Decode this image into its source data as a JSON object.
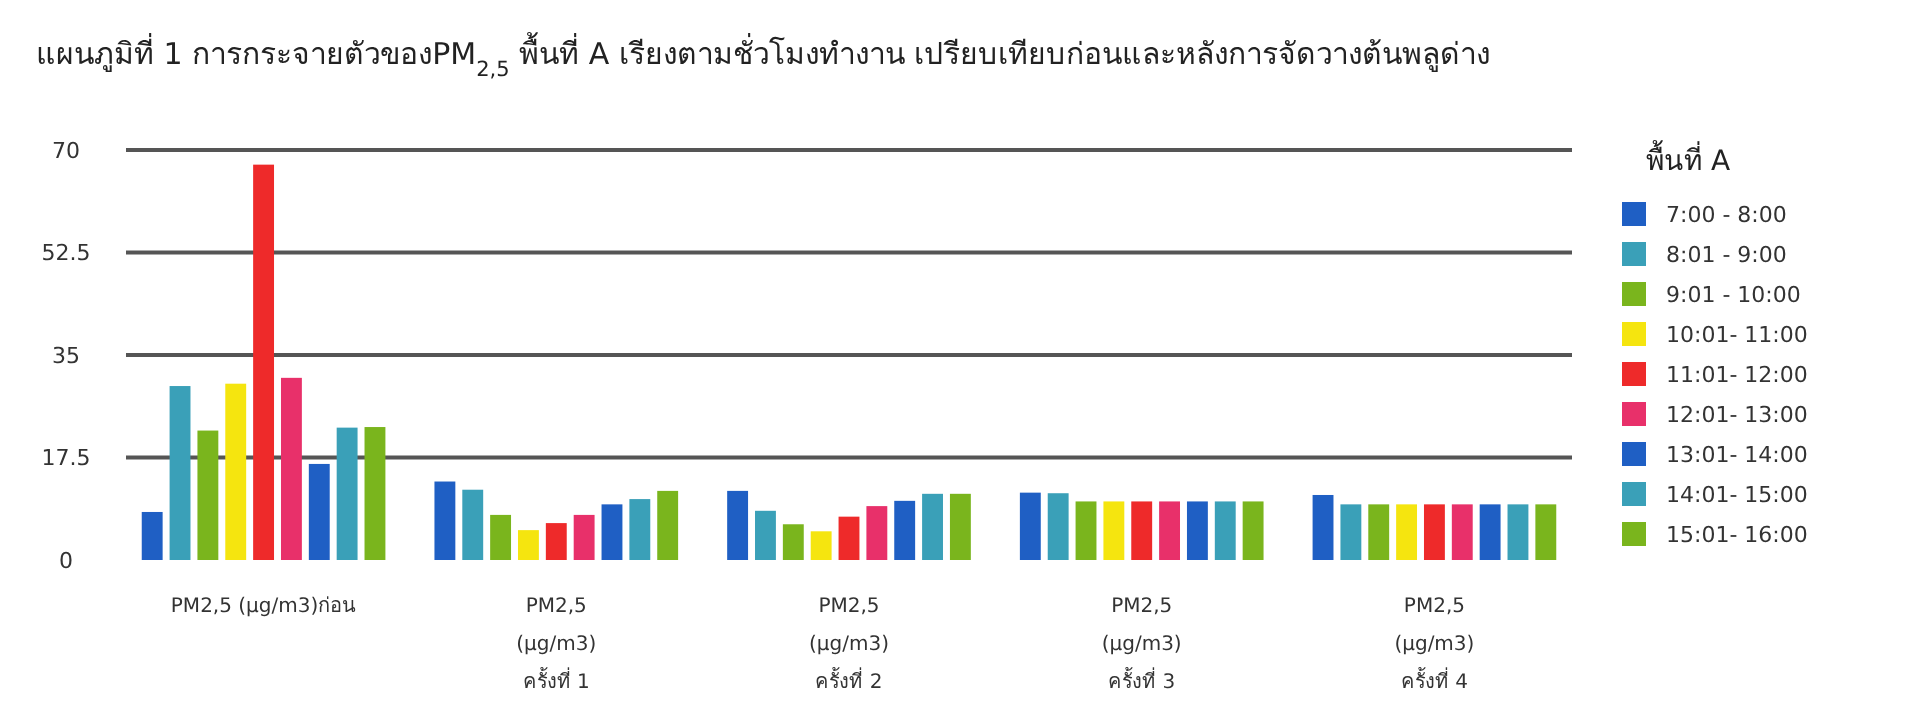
{
  "chart_data": {
    "type": "bar",
    "title": "แผนภูมิที่ 1 การกระจายตัวของPM$_{2,5}$ พื้นที่ A เรียงตามชั่วโมงทำงาน เปรียบเทียบก่อนและหลังการจัดวางต้นพลูด่าง",
    "categories": [
      "PM2,5 (µg/m3)ก่อน",
      "PM2,5\n(µg/m3)\nครั้งที่ 1",
      "PM2,5\n(µg/m3)\nครั้งที่ 2",
      "PM2,5\n(µg/m3)\nครั้งที่ 3",
      "PM2,5\n(µg/m3)\nครั้งที่ 4"
    ],
    "legend_title": "พื้นที่ A",
    "series": [
      {
        "name": "7:00 - 8:00",
        "color": "#1f5fc4",
        "values": [
          8.2,
          13.4,
          11.8,
          11.5,
          11.1
        ]
      },
      {
        "name": "8:01 - 9:00",
        "color": "#3aa0b8",
        "values": [
          29.7,
          12.0,
          8.4,
          11.4,
          9.5
        ]
      },
      {
        "name": "9:01 - 10:00",
        "color": "#7ab51d",
        "values": [
          22.1,
          7.7,
          6.1,
          10,
          9.5
        ]
      },
      {
        "name": "10:01- 11:00",
        "color": "#f5e50f",
        "values": [
          30.1,
          5.1,
          4.9,
          10,
          9.5
        ]
      },
      {
        "name": "11:01- 12:00",
        "color": "#ee2a2a",
        "values": [
          67.5,
          6.3,
          7.4,
          10,
          9.5
        ]
      },
      {
        "name": "12:01- 13:00",
        "color": "#e8306a",
        "values": [
          31.1,
          7.7,
          9.2,
          10,
          9.5
        ]
      },
      {
        "name": "13:01- 14:00",
        "color": "#1f5fc4",
        "values": [
          16.4,
          9.5,
          10.1,
          10,
          9.5
        ]
      },
      {
        "name": "14:01- 15:00",
        "color": "#3aa0b8",
        "values": [
          22.6,
          10.4,
          11.3,
          10,
          9.5
        ]
      },
      {
        "name": "15:01- 16:00",
        "color": "#7ab51d",
        "values": [
          22.7,
          11.8,
          11.3,
          10,
          9.5
        ]
      }
    ],
    "ylim": [
      0,
      70
    ],
    "yticks": [
      0,
      17.5,
      35,
      52.5,
      70
    ],
    "grid": "y",
    "legend": "right"
  }
}
